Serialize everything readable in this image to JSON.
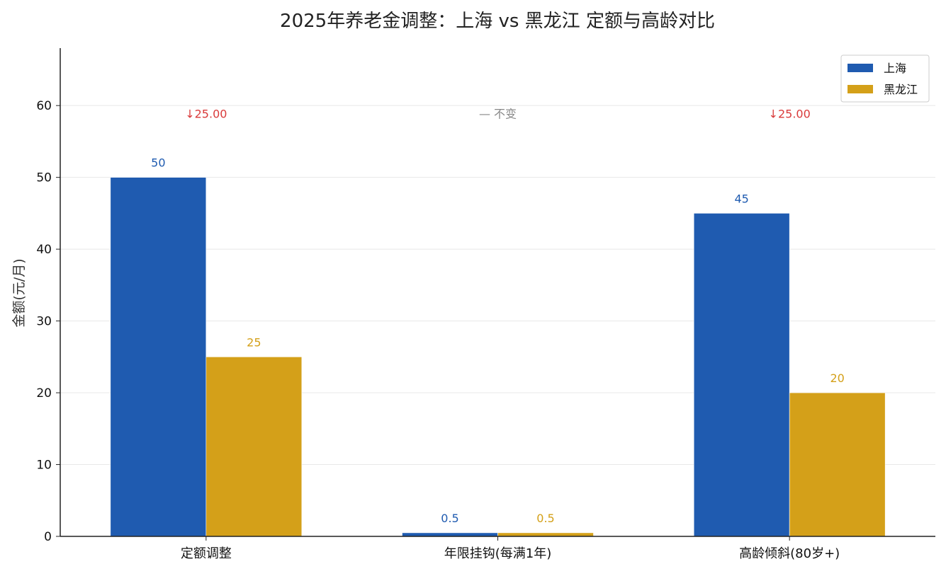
{
  "chart_data": {
    "type": "bar",
    "title": "2025年养老金调整：上海 vs 黑龙江 定额与高龄对比",
    "xlabel": "",
    "ylabel": "金额(元/月)",
    "categories": [
      "定额调整",
      "年限挂钩(每满1年)",
      "高龄倾斜(80岁+)"
    ],
    "series": [
      {
        "name": "上海",
        "values": [
          50,
          0.5,
          45
        ],
        "labels": [
          "50",
          "0.5",
          "45"
        ],
        "color": "#1f5bb0"
      },
      {
        "name": "黑龙江",
        "values": [
          25,
          0.5,
          20
        ],
        "labels": [
          "25",
          "0.5",
          "20"
        ],
        "color": "#d4a019"
      }
    ],
    "differences": [
      {
        "text": "↓25.00",
        "color": "#d93a3a"
      },
      {
        "text": "— 不变",
        "color": "#888888"
      },
      {
        "text": "↓25.00",
        "color": "#d93a3a"
      }
    ],
    "ylim": [
      0,
      68
    ],
    "yticks": [
      "0",
      "10",
      "20",
      "30",
      "40",
      "50",
      "60"
    ],
    "grid": true,
    "legend_position": "top-right"
  }
}
